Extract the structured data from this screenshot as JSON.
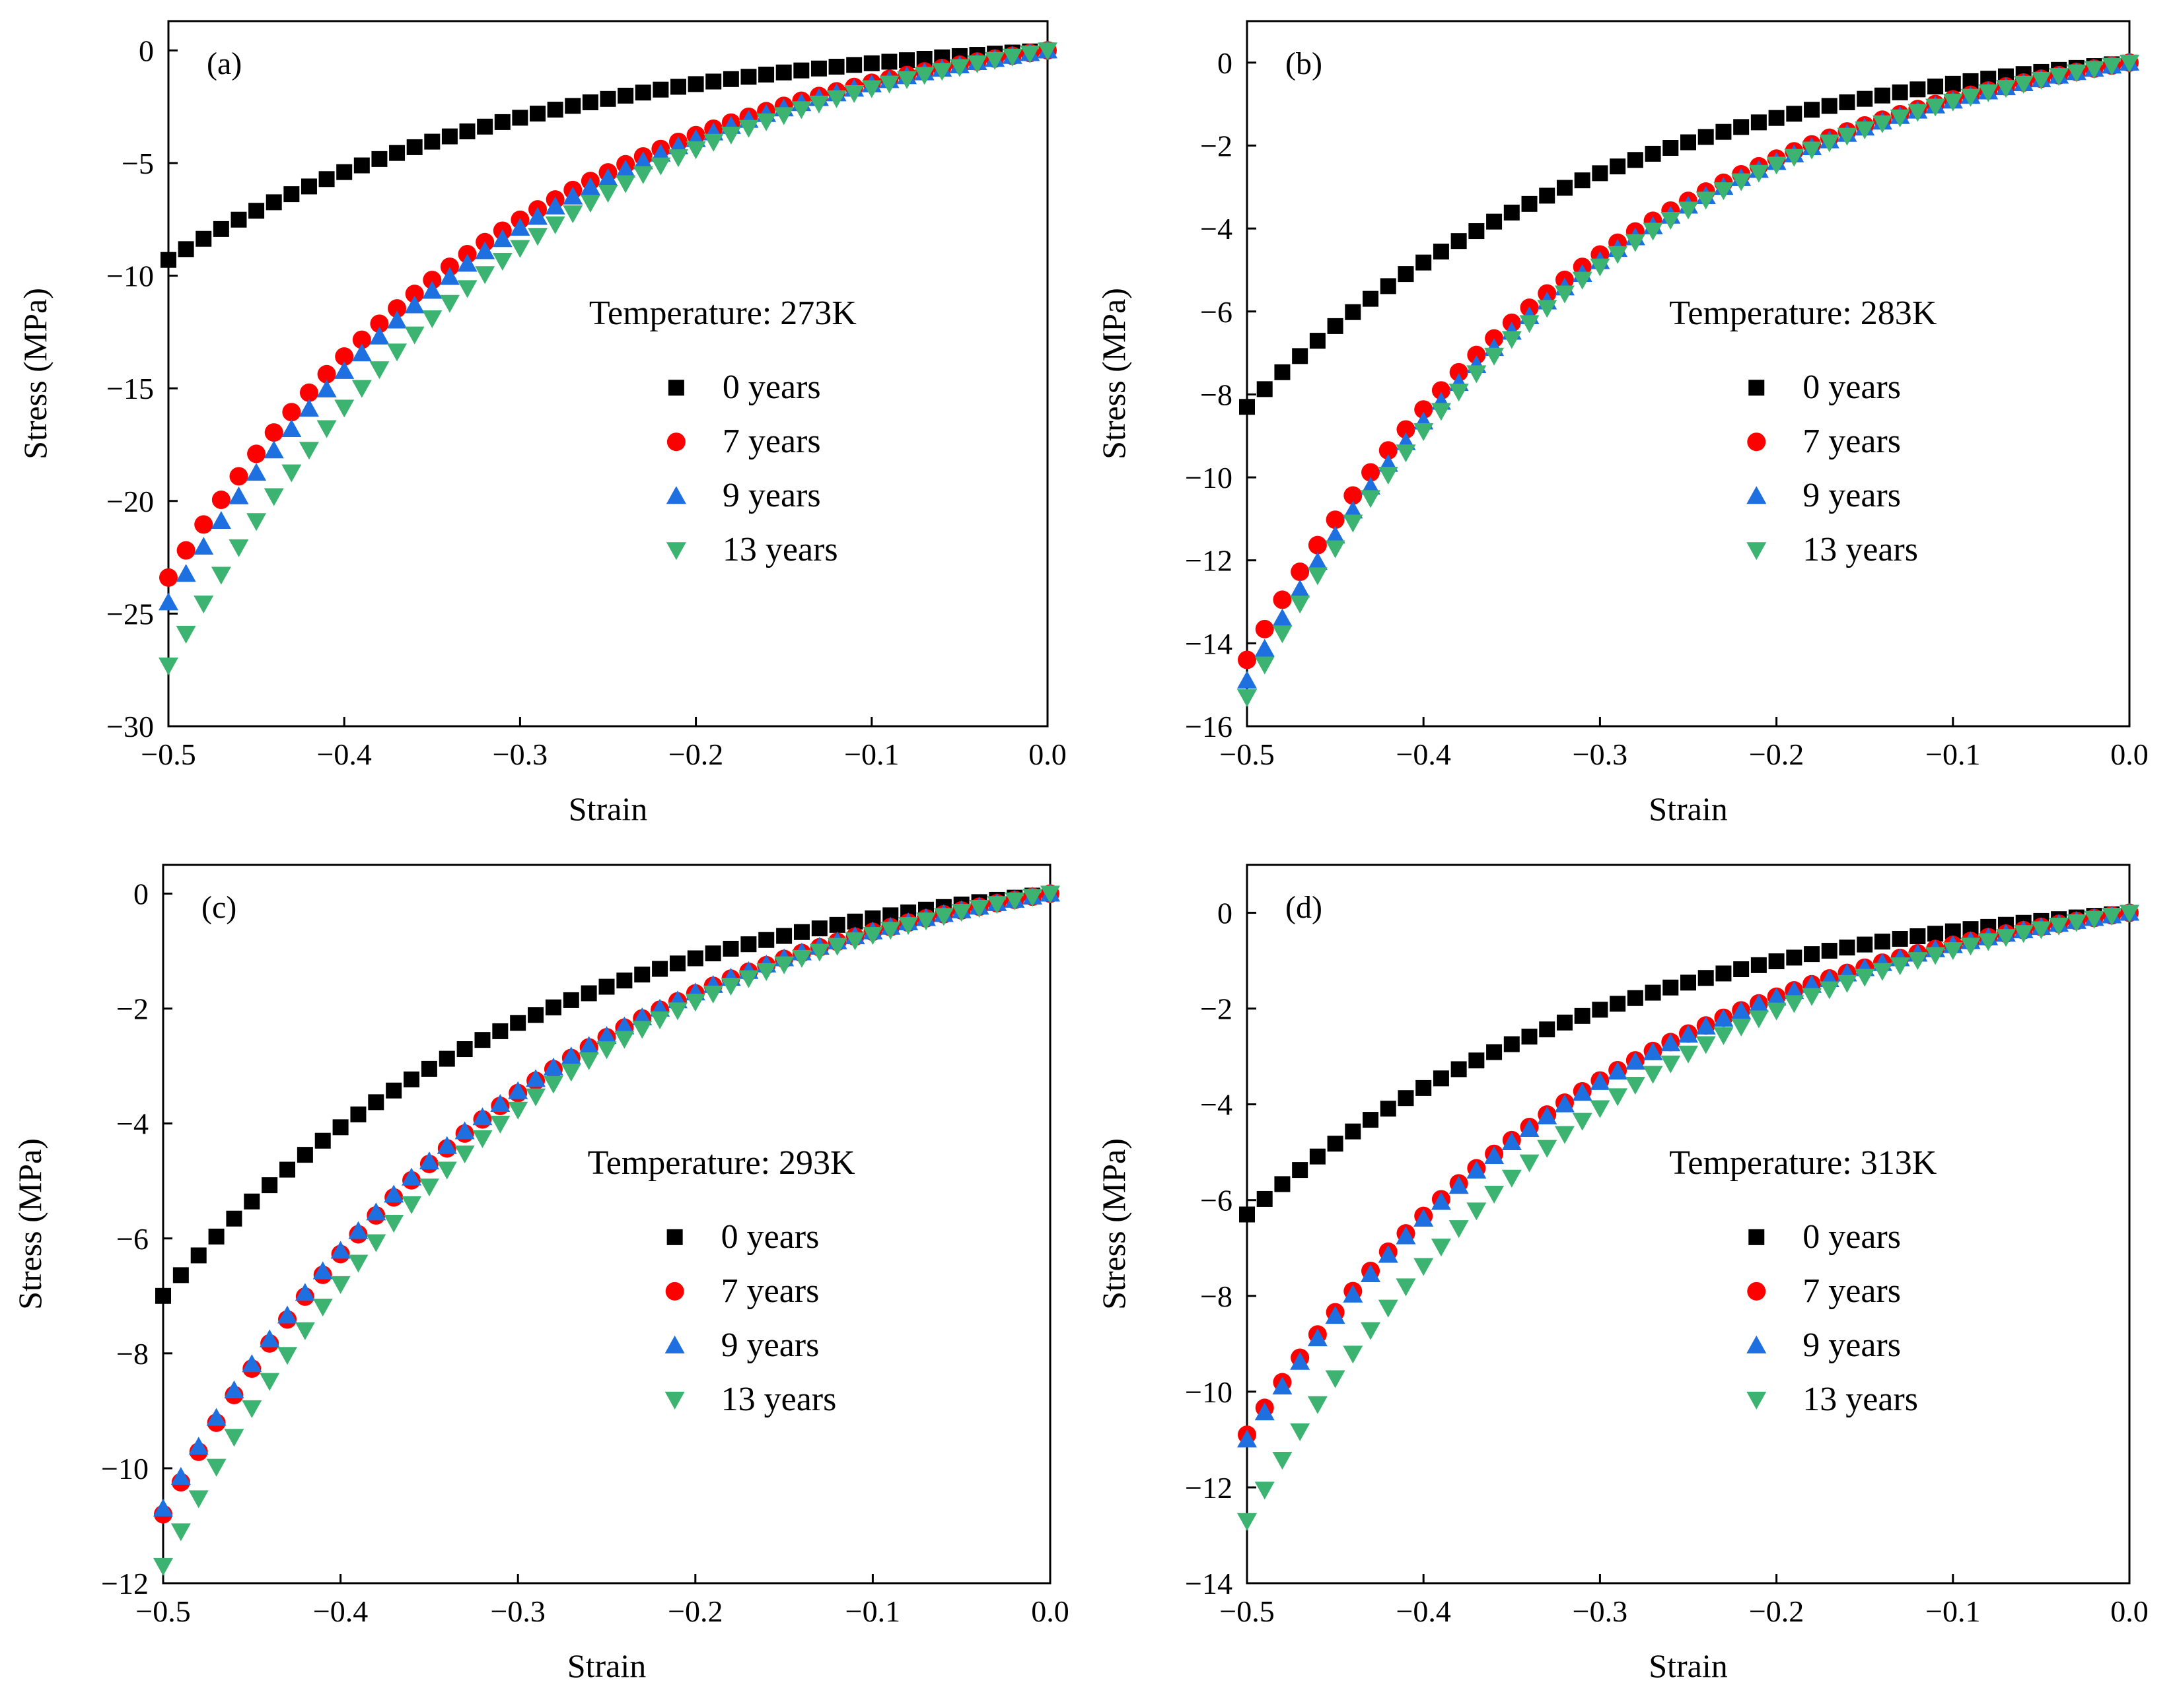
{
  "chart_data": [
    {
      "type": "scatter",
      "panel": "(a)",
      "annotation": "Temperature: 273K",
      "xlabel": "Strain",
      "ylabel": "Stress (MPa)",
      "xlim": [
        -0.5,
        0.0
      ],
      "ylim": [
        -30,
        1.3
      ],
      "xticks": [
        -0.5,
        -0.4,
        -0.3,
        -0.2,
        -0.1,
        0.0
      ],
      "xtick_labels": [
        "−0.5",
        "−0.4",
        "−0.3",
        "−0.2",
        "−0.1",
        "0.0"
      ],
      "yticks": [
        -30,
        -25,
        -20,
        -15,
        -10,
        -5,
        0
      ],
      "ytick_labels": [
        "−30",
        "−25",
        "−20",
        "−15",
        "−10",
        "−5",
        "0"
      ],
      "legend_position": "center-right",
      "series": [
        {
          "name": "0 years",
          "marker": "square",
          "color": "#000000",
          "y_end": -9.3
        },
        {
          "name": "7 years",
          "marker": "circle",
          "color": "#ff0000",
          "y_end": -23.4
        },
        {
          "name": "9 years",
          "marker": "triangle-up",
          "color": "#1e6fe0",
          "y_end": -24.5
        },
        {
          "name": "13 years",
          "marker": "triangle-down",
          "color": "#3cb371",
          "y_end": -27.3
        }
      ]
    },
    {
      "type": "scatter",
      "panel": "(b)",
      "annotation": "Temperature: 283K",
      "xlabel": "Strain",
      "ylabel": "Stress (MPa)",
      "xlim": [
        -0.5,
        0.0
      ],
      "ylim": [
        -16,
        1
      ],
      "xticks": [
        -0.5,
        -0.4,
        -0.3,
        -0.2,
        -0.1,
        0.0
      ],
      "xtick_labels": [
        "−0.5",
        "−0.4",
        "−0.3",
        "−0.2",
        "−0.1",
        "0.0"
      ],
      "yticks": [
        -16,
        -14,
        -12,
        -10,
        -8,
        -6,
        -4,
        -2,
        0
      ],
      "ytick_labels": [
        "−16",
        "−14",
        "−12",
        "−10",
        "−8",
        "−6",
        "−4",
        "−2",
        "0"
      ],
      "legend_position": "center-right",
      "series": [
        {
          "name": "0 years",
          "marker": "square",
          "color": "#000000",
          "y_end": -8.3
        },
        {
          "name": "7 years",
          "marker": "circle",
          "color": "#ff0000",
          "y_end": -14.4
        },
        {
          "name": "9 years",
          "marker": "triangle-up",
          "color": "#1e6fe0",
          "y_end": -14.9
        },
        {
          "name": "13 years",
          "marker": "triangle-down",
          "color": "#3cb371",
          "y_end": -15.3
        }
      ]
    },
    {
      "type": "scatter",
      "panel": "(c)",
      "annotation": "Temperature: 293K",
      "xlabel": "Strain",
      "ylabel": "Stress (MPa)",
      "xlim": [
        -0.5,
        0.0
      ],
      "ylim": [
        -12,
        0.5
      ],
      "xticks": [
        -0.5,
        -0.4,
        -0.3,
        -0.2,
        -0.1,
        0.0
      ],
      "xtick_labels": [
        "−0.5",
        "−0.4",
        "−0.3",
        "−0.2",
        "−0.1",
        "0.0"
      ],
      "yticks": [
        -12,
        -10,
        -8,
        -6,
        -4,
        -2,
        0
      ],
      "ytick_labels": [
        "−12",
        "−10",
        "−8",
        "−6",
        "−4",
        "−2",
        "0"
      ],
      "legend_position": "center-right",
      "series": [
        {
          "name": "0 years",
          "marker": "square",
          "color": "#000000",
          "y_end": -7.0
        },
        {
          "name": "7 years",
          "marker": "circle",
          "color": "#ff0000",
          "y_end": -10.8
        },
        {
          "name": "9 years",
          "marker": "triangle-up",
          "color": "#1e6fe0",
          "y_end": -10.7
        },
        {
          "name": "13 years",
          "marker": "triangle-down",
          "color": "#3cb371",
          "y_end": -11.7
        }
      ]
    },
    {
      "type": "scatter",
      "panel": "(d)",
      "annotation": "Temperature: 313K",
      "xlabel": "Strain",
      "ylabel": "Stress (MPa)",
      "xlim": [
        -0.5,
        0.0
      ],
      "ylim": [
        -14,
        1
      ],
      "xticks": [
        -0.5,
        -0.4,
        -0.3,
        -0.2,
        -0.1,
        0.0
      ],
      "xtick_labels": [
        "−0.5",
        "−0.4",
        "−0.3",
        "−0.2",
        "−0.1",
        "0.0"
      ],
      "yticks": [
        -14,
        -12,
        -10,
        -8,
        -6,
        -4,
        -2,
        0
      ],
      "ytick_labels": [
        "−14",
        "−12",
        "−10",
        "−8",
        "−6",
        "−4",
        "−2",
        "0"
      ],
      "legend_position": "center-right",
      "series": [
        {
          "name": "0 years",
          "marker": "square",
          "color": "#000000",
          "y_end": -6.3
        },
        {
          "name": "7 years",
          "marker": "circle",
          "color": "#ff0000",
          "y_end": -10.9
        },
        {
          "name": "9 years",
          "marker": "triangle-up",
          "color": "#1e6fe0",
          "y_end": -11.0
        },
        {
          "name": "13 years",
          "marker": "triangle-down",
          "color": "#3cb371",
          "y_end": -12.7
        }
      ]
    }
  ]
}
